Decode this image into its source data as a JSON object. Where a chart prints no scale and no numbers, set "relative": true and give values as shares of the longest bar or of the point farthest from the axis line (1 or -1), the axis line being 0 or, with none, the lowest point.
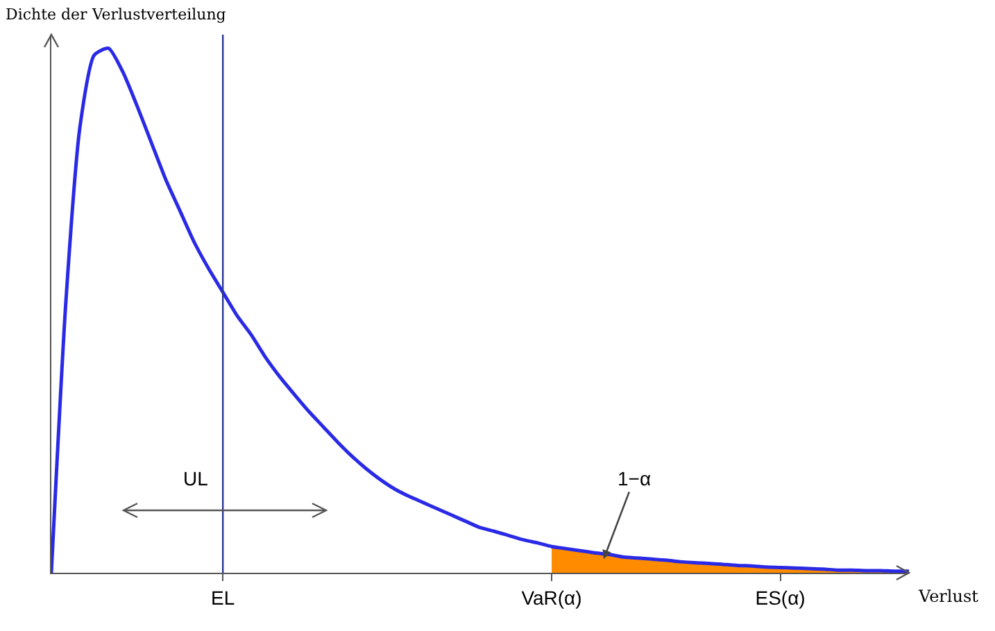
{
  "chart_data": {
    "type": "line",
    "relative": true,
    "ylabel": "Dichte der Verlustverteilung",
    "xlabel": "Verlust",
    "categories": [
      null,
      null,
      null,
      null,
      null,
      null,
      null,
      null,
      null,
      null,
      null,
      null,
      "EL",
      null,
      null,
      null,
      null,
      null,
      null,
      null,
      null,
      null,
      null,
      null,
      null,
      null,
      null,
      null,
      null,
      null,
      null,
      null,
      null,
      null,
      null,
      "VaR(α)",
      null,
      null,
      null,
      null,
      null,
      null,
      null,
      null,
      null,
      null,
      null,
      null,
      null,
      null,
      null,
      "ES(α)",
      null,
      null,
      null,
      null,
      null,
      null,
      null,
      null,
      null
    ],
    "series": [
      {
        "color": "#2a2ae6",
        "values": [
          0,
          0.51,
          0.85,
          0.987,
          1,
          0.955,
          0.89,
          0.82,
          0.75,
          0.69,
          0.63,
          0.58,
          0.535,
          0.49,
          0.453,
          0.41,
          0.373,
          0.34,
          0.308,
          0.279,
          0.25,
          0.223,
          0.199,
          0.178,
          0.16,
          0.146,
          0.134,
          0.122,
          0.11,
          0.098,
          0.086,
          0.079,
          0.071,
          0.063,
          0.057,
          0.05,
          0.046,
          0.042,
          0.038,
          0.035,
          0.03,
          0.028,
          0.026,
          0.024,
          0.021,
          0.019,
          0.018,
          0.016,
          0.014,
          0.013,
          0.011,
          0.01,
          0.009,
          0.008,
          0.007,
          0.005,
          0.005,
          0.004,
          0.004,
          0.003,
          0.003
        ]
      },
      {
        "type": "area",
        "color": "#ff8c00",
        "values": [
          null,
          null,
          null,
          null,
          null,
          null,
          null,
          null,
          null,
          null,
          null,
          null,
          null,
          null,
          null,
          null,
          null,
          null,
          null,
          null,
          null,
          null,
          null,
          null,
          null,
          null,
          null,
          null,
          null,
          null,
          null,
          null,
          null,
          null,
          null,
          0.05,
          0.046,
          0.042,
          0.038,
          0.035,
          0.03,
          0.028,
          0.026,
          0.024,
          0.021,
          0.019,
          0.018,
          0.016,
          0.014,
          0.013,
          0.011,
          0.01,
          0.009,
          0.008,
          0.007,
          0.005,
          0.005,
          0.004,
          0.004,
          0.003,
          0.003
        ]
      }
    ],
    "ref_lines": [
      {
        "axis": "x",
        "value": "EL",
        "color": "#283593"
      }
    ],
    "annotations": [
      "UL",
      "1−α"
    ],
    "grid": false,
    "legend": false,
    "marker": "none",
    "line_style": "solid"
  }
}
